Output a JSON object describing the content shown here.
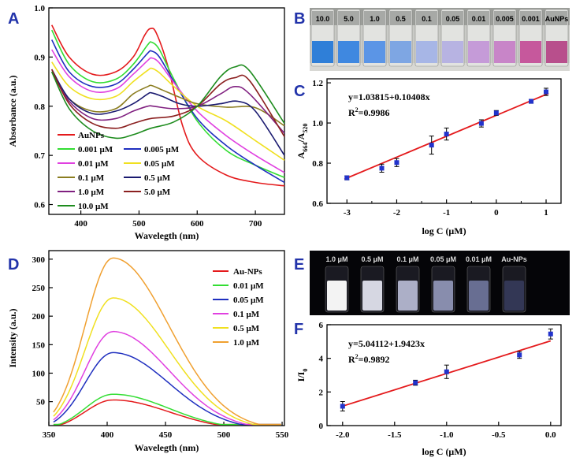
{
  "panel_labels": {
    "A": "A",
    "B": "B",
    "C": "C",
    "D": "D",
    "E": "E",
    "F": "F"
  },
  "chart_data": [
    {
      "id": "A",
      "type": "line",
      "xlabel": "Wavelegth (nm)",
      "ylabel": "Absorbance (a.u.)",
      "xlim": [
        345,
        750
      ],
      "ylim": [
        0.58,
        1.0
      ],
      "xticks": [
        "400",
        "500",
        "600",
        "700"
      ],
      "xtick_values": [
        400,
        500,
        600,
        700
      ],
      "yticks": [
        "0.6",
        "0.7",
        "0.8",
        "0.9",
        "1.0"
      ],
      "ytick_values": [
        0.6,
        0.7,
        0.8,
        0.9,
        1.0
      ],
      "series": [
        {
          "name": "AuNPs",
          "color": "#e41a1c",
          "points": [
            [
              350,
              0.965
            ],
            [
              380,
              0.9
            ],
            [
              420,
              0.865
            ],
            [
              460,
              0.87
            ],
            [
              490,
              0.9
            ],
            [
              510,
              0.945
            ],
            [
              520,
              0.958
            ],
            [
              530,
              0.948
            ],
            [
              550,
              0.88
            ],
            [
              575,
              0.76
            ],
            [
              600,
              0.7
            ],
            [
              650,
              0.66
            ],
            [
              700,
              0.645
            ],
            [
              750,
              0.638
            ]
          ]
        },
        {
          "name": "0.001 μM",
          "color": "#33dd33",
          "points": [
            [
              350,
              0.955
            ],
            [
              380,
              0.885
            ],
            [
              420,
              0.85
            ],
            [
              460,
              0.855
            ],
            [
              490,
              0.885
            ],
            [
              515,
              0.925
            ],
            [
              522,
              0.93
            ],
            [
              535,
              0.915
            ],
            [
              560,
              0.855
            ],
            [
              600,
              0.77
            ],
            [
              650,
              0.71
            ],
            [
              700,
              0.68
            ],
            [
              750,
              0.655
            ]
          ]
        },
        {
          "name": "0.005 μM",
          "color": "#1f2fbf",
          "points": [
            [
              350,
              0.935
            ],
            [
              380,
              0.87
            ],
            [
              420,
              0.84
            ],
            [
              460,
              0.845
            ],
            [
              490,
              0.875
            ],
            [
              515,
              0.908
            ],
            [
              522,
              0.912
            ],
            [
              535,
              0.9
            ],
            [
              560,
              0.85
            ],
            [
              600,
              0.775
            ],
            [
              650,
              0.72
            ],
            [
              700,
              0.68
            ],
            [
              750,
              0.645
            ]
          ]
        },
        {
          "name": "0.01 μM",
          "color": "#e040e0",
          "points": [
            [
              350,
              0.915
            ],
            [
              380,
              0.86
            ],
            [
              420,
              0.83
            ],
            [
              460,
              0.835
            ],
            [
              490,
              0.865
            ],
            [
              515,
              0.893
            ],
            [
              522,
              0.898
            ],
            [
              535,
              0.888
            ],
            [
              560,
              0.848
            ],
            [
              600,
              0.79
            ],
            [
              650,
              0.74
            ],
            [
              700,
              0.7
            ],
            [
              750,
              0.665
            ]
          ]
        },
        {
          "name": "0.05 μM",
          "color": "#f0e020",
          "points": [
            [
              350,
              0.89
            ],
            [
              380,
              0.84
            ],
            [
              420,
              0.815
            ],
            [
              460,
              0.82
            ],
            [
              490,
              0.85
            ],
            [
              515,
              0.873
            ],
            [
              522,
              0.877
            ],
            [
              535,
              0.868
            ],
            [
              560,
              0.84
            ],
            [
              600,
              0.8
            ],
            [
              650,
              0.77
            ],
            [
              700,
              0.73
            ],
            [
              750,
              0.69
            ]
          ]
        },
        {
          "name": "0.1 μM",
          "color": "#8b7d20",
          "points": [
            [
              350,
              0.87
            ],
            [
              380,
              0.815
            ],
            [
              420,
              0.79
            ],
            [
              460,
              0.795
            ],
            [
              490,
              0.825
            ],
            [
              515,
              0.84
            ],
            [
              522,
              0.842
            ],
            [
              540,
              0.833
            ],
            [
              570,
              0.818
            ],
            [
              600,
              0.805
            ],
            [
              650,
              0.798
            ],
            [
              700,
              0.797
            ],
            [
              750,
              0.76
            ]
          ]
        },
        {
          "name": "0.5 μM",
          "color": "#1a1a70",
          "points": [
            [
              350,
              0.875
            ],
            [
              380,
              0.815
            ],
            [
              420,
              0.785
            ],
            [
              460,
              0.79
            ],
            [
              490,
              0.805
            ],
            [
              515,
              0.825
            ],
            [
              522,
              0.827
            ],
            [
              540,
              0.82
            ],
            [
              570,
              0.805
            ],
            [
              600,
              0.8
            ],
            [
              640,
              0.805
            ],
            [
              670,
              0.81
            ],
            [
              700,
              0.79
            ],
            [
              750,
              0.7
            ]
          ]
        },
        {
          "name": "1.0 μM",
          "color": "#802080",
          "points": [
            [
              350,
              0.87
            ],
            [
              380,
              0.81
            ],
            [
              420,
              0.775
            ],
            [
              460,
              0.775
            ],
            [
              490,
              0.79
            ],
            [
              515,
              0.8
            ],
            [
              525,
              0.8
            ],
            [
              560,
              0.795
            ],
            [
              600,
              0.8
            ],
            [
              640,
              0.825
            ],
            [
              665,
              0.84
            ],
            [
              690,
              0.825
            ],
            [
              750,
              0.745
            ]
          ]
        },
        {
          "name": "5.0 μM",
          "color": "#8b2020",
          "points": [
            [
              350,
              0.875
            ],
            [
              380,
              0.805
            ],
            [
              420,
              0.765
            ],
            [
              460,
              0.755
            ],
            [
              490,
              0.765
            ],
            [
              520,
              0.775
            ],
            [
              560,
              0.78
            ],
            [
              600,
              0.8
            ],
            [
              640,
              0.845
            ],
            [
              665,
              0.858
            ],
            [
              690,
              0.852
            ],
            [
              750,
              0.738
            ]
          ]
        },
        {
          "name": "10.0 μM",
          "color": "#1e8c1e",
          "points": [
            [
              350,
              0.87
            ],
            [
              380,
              0.795
            ],
            [
              420,
              0.75
            ],
            [
              460,
              0.735
            ],
            [
              490,
              0.742
            ],
            [
              520,
              0.755
            ],
            [
              560,
              0.768
            ],
            [
              600,
              0.8
            ],
            [
              640,
              0.86
            ],
            [
              665,
              0.88
            ],
            [
              690,
              0.872
            ],
            [
              750,
              0.765
            ]
          ]
        }
      ]
    },
    {
      "id": "C",
      "type": "scatter",
      "xlabel": "log C (μM)",
      "ylabel_main": "A",
      "ylabel_sub1": "664",
      "ylabel_mid": "/A",
      "ylabel_sub2": "520",
      "xlim": [
        -3.4,
        1.3
      ],
      "ylim": [
        0.6,
        1.22
      ],
      "xticks": [
        "-3",
        "-2",
        "-1",
        "0",
        "1"
      ],
      "xtick_values": [
        -3,
        -2,
        -1,
        0,
        1
      ],
      "xticks_minor": [
        -2.5,
        -1.5,
        -0.5,
        0.5
      ],
      "yticks": [
        "0.6",
        "0.8",
        "1.0",
        "1.2"
      ],
      "ytick_values": [
        0.6,
        0.8,
        1.0,
        1.2
      ],
      "equation": "y=1.03815+0.10408x",
      "r2_prefix": "R",
      "r2_sup": "2",
      "r2_value": "=0.9986",
      "fit": {
        "intercept": 1.03815,
        "slope": 0.10408,
        "x_range": [
          -3.05,
          1.05
        ],
        "color": "#e41a1c"
      },
      "points": [
        [
          -3,
          0.727,
          0.01
        ],
        [
          -2.3,
          0.775,
          0.02
        ],
        [
          -2,
          0.803,
          0.02
        ],
        [
          -1.3,
          0.89,
          0.045
        ],
        [
          -1,
          0.945,
          0.03
        ],
        [
          -0.3,
          0.998,
          0.018
        ],
        [
          0,
          1.05,
          0.012
        ],
        [
          0.7,
          1.108,
          0.01
        ],
        [
          1,
          1.155,
          0.018
        ]
      ]
    },
    {
      "id": "D",
      "type": "line",
      "xlabel": "Wavelegth (nm)",
      "ylabel": "Intensity (a.u.)",
      "xlim": [
        350,
        552
      ],
      "ylim": [
        8,
        315
      ],
      "xticks": [
        "350",
        "400",
        "450",
        "500",
        "550"
      ],
      "xtick_values": [
        350,
        400,
        450,
        500,
        550
      ],
      "yticks": [
        "50",
        "100",
        "150",
        "200",
        "250",
        "300"
      ],
      "ytick_values": [
        50,
        100,
        150,
        200,
        250,
        300
      ],
      "series": [
        {
          "name": "Au-NPs",
          "color": "#e41a1c",
          "peak": 53
        },
        {
          "name": "0.01 μM",
          "color": "#33dd33",
          "peak": 63
        },
        {
          "name": "0.05 μM",
          "color": "#1f2fbf",
          "peak": 136
        },
        {
          "name": "0.1 μM",
          "color": "#e040e0",
          "peak": 173
        },
        {
          "name": "0.5 μM",
          "color": "#f0e020",
          "peak": 232
        },
        {
          "name": "1.0 μM",
          "color": "#f0a030",
          "peak": 302
        }
      ],
      "peak_wavelength": 405
    },
    {
      "id": "F",
      "type": "scatter",
      "xlabel": "log C (μM)",
      "ylabel_main": "I/I",
      "ylabel_sub": "0",
      "xlim": [
        -2.15,
        0.1
      ],
      "ylim": [
        0,
        6
      ],
      "xticks": [
        "-2.0",
        "-1.5",
        "-1.0",
        "-0.5",
        "0.0"
      ],
      "xtick_values": [
        -2,
        -1.5,
        -1,
        -0.5,
        0
      ],
      "yticks": [
        "0",
        "2",
        "4",
        "6"
      ],
      "ytick_values": [
        0,
        2,
        4,
        6
      ],
      "equation": "y=5.04112+1.9423x",
      "r2_prefix": "R",
      "r2_sup": "2",
      "r2_value": "=0.9892",
      "fit": {
        "intercept": 5.04112,
        "slope": 1.9423,
        "x_range": [
          -2,
          0
        ],
        "color": "#e41a1c"
      },
      "points": [
        [
          -2,
          1.15,
          0.28
        ],
        [
          -1.3,
          2.55,
          0.15
        ],
        [
          -1,
          3.2,
          0.4
        ],
        [
          -0.3,
          4.2,
          0.2
        ],
        [
          0,
          5.45,
          0.3
        ]
      ]
    }
  ],
  "photo_B": {
    "labels": [
      "10.0",
      "5.0",
      "1.0",
      "0.5",
      "0.1",
      "0.05",
      "0.01",
      "0.005",
      "0.001",
      "AuNPs"
    ],
    "liquid_colors": [
      "#2f7fd8",
      "#3f88e0",
      "#5b95e6",
      "#7ea6e3",
      "#a7b6e6",
      "#b7b3e2",
      "#c59bd8",
      "#c885c8",
      "#c6589c",
      "#b84f8c"
    ]
  },
  "photo_E": {
    "labels": [
      "1.0 μM",
      "0.5 μM",
      "0.1 μM",
      "0.05 μM",
      "0.01 μM",
      "Au-NPs"
    ],
    "glow": [
      1.0,
      0.9,
      0.75,
      0.6,
      0.45,
      0.1
    ]
  }
}
